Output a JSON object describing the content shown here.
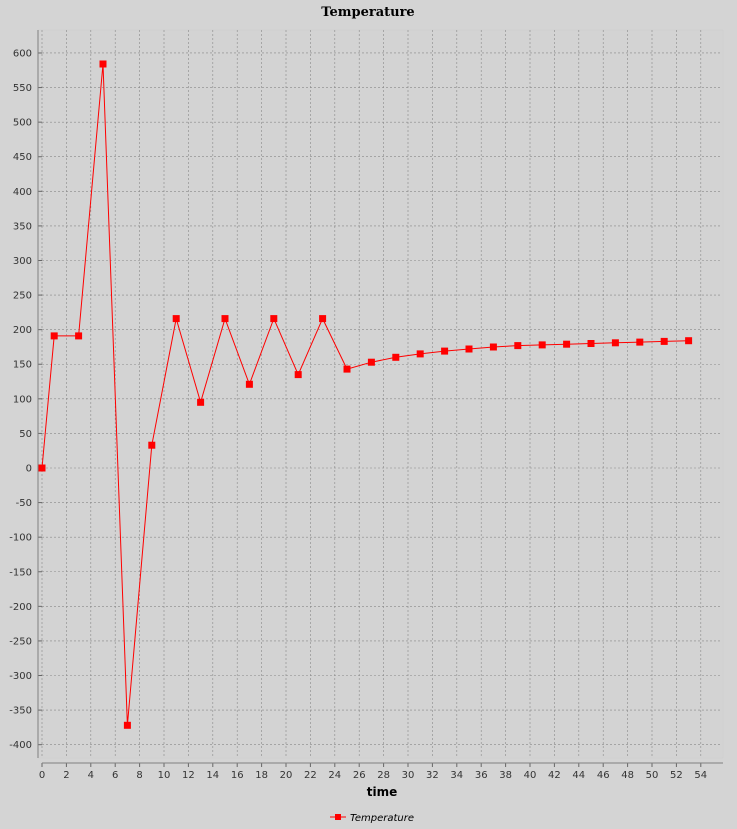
{
  "chart_data": {
    "type": "line",
    "title": "Temperature",
    "xlabel": "time",
    "ylabel": "",
    "xlim": [
      0,
      55
    ],
    "ylim": [
      -420,
      630
    ],
    "x_ticks": [
      0,
      2,
      4,
      6,
      8,
      10,
      12,
      14,
      16,
      18,
      20,
      22,
      24,
      26,
      28,
      30,
      32,
      34,
      36,
      38,
      40,
      42,
      44,
      46,
      48,
      50,
      52,
      54
    ],
    "y_ticks": [
      -400,
      -350,
      -300,
      -250,
      -200,
      -150,
      -100,
      -50,
      0,
      50,
      100,
      150,
      200,
      250,
      300,
      350,
      400,
      450,
      500,
      550,
      600
    ],
    "grid": true,
    "legend_position": "bottom-center",
    "series": [
      {
        "name": "Temperature",
        "color": "#ff0000",
        "marker": "square",
        "x": [
          0,
          1,
          3,
          5,
          7,
          9,
          11,
          13,
          15,
          17,
          19,
          21,
          23,
          25,
          27,
          29,
          31,
          33,
          35,
          37,
          39,
          41,
          43,
          45,
          47,
          49,
          51,
          53
        ],
        "y": [
          0,
          191,
          191,
          584,
          -372,
          33,
          216,
          95,
          216,
          121,
          216,
          135,
          216,
          143,
          153,
          160,
          165,
          169,
          172,
          175,
          177,
          178,
          179,
          180,
          181,
          182,
          183,
          184
        ]
      }
    ]
  }
}
